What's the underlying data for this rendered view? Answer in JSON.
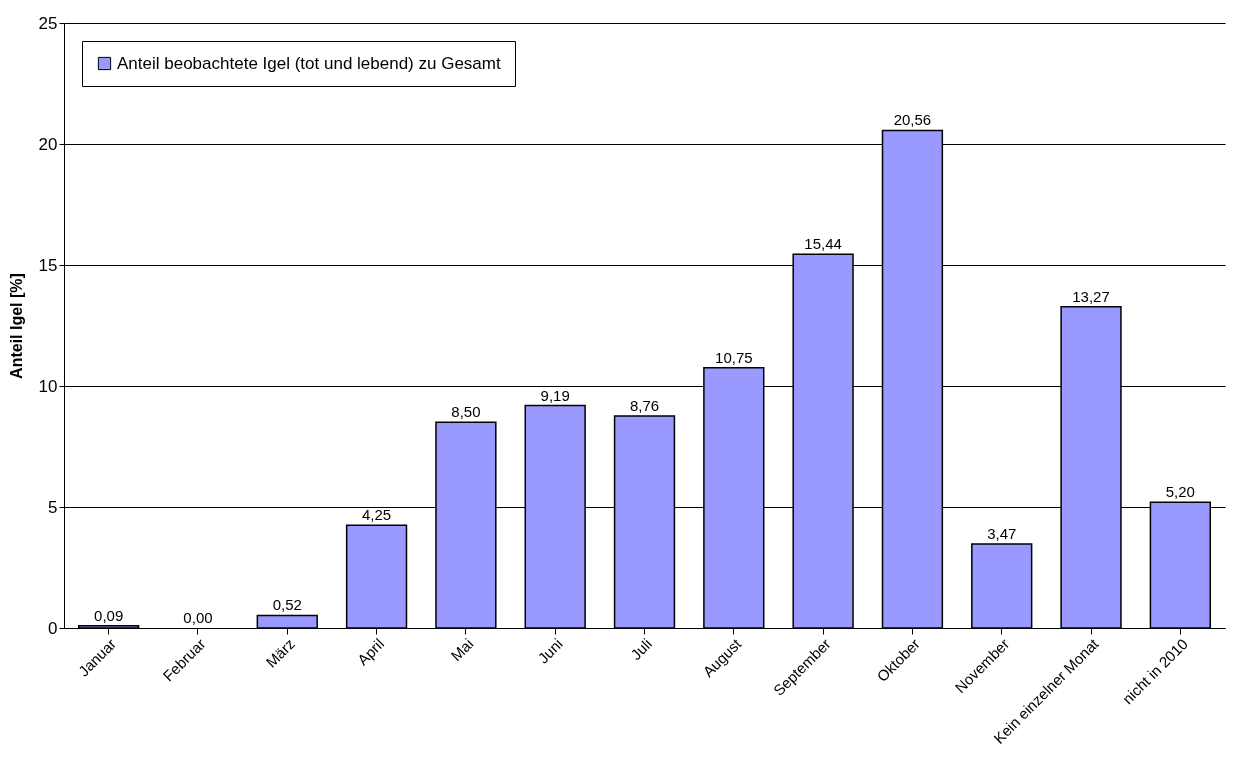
{
  "chart_data": {
    "type": "bar",
    "ylabel": "Anteil Igel [%]",
    "categories": [
      "Januar",
      "Februar",
      "März",
      "April",
      "Mai",
      "Juni",
      "Juli",
      "August",
      "September",
      "Oktober",
      "November",
      "Kein einzelner Monat",
      "nicht in 2010"
    ],
    "series": [
      {
        "name": "Anteil beobachtete Igel (tot und lebend) zu Gesamt",
        "color": "#9999ff",
        "values": [
          0.09,
          0.0,
          0.52,
          4.25,
          8.5,
          9.19,
          8.76,
          10.75,
          15.44,
          20.56,
          3.47,
          13.27,
          5.2
        ],
        "value_labels": [
          "0,09",
          "0,00",
          "0,52",
          "4,25",
          "8,50",
          "9,19",
          "8,76",
          "10,75",
          "15,44",
          "20,56",
          "3,47",
          "13,27",
          "5,20"
        ]
      }
    ],
    "ylim": [
      0,
      25
    ],
    "yticks": [
      0,
      5,
      10,
      15,
      20,
      25
    ],
    "grid": "y",
    "legend": "top left"
  }
}
